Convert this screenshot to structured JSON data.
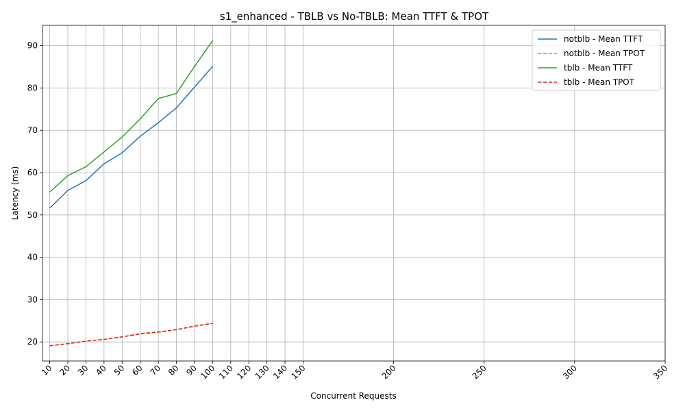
{
  "chart_data": {
    "type": "line",
    "title": "s1_enhanced - TBLB vs No-TBLB: Mean TTFT & TPOT",
    "xlabel": "Concurrent Requests",
    "ylabel": "Latency (ms)",
    "xlim": [
      6,
      350
    ],
    "ylim": [
      15.5,
      94.8
    ],
    "xticks": [
      10,
      20,
      30,
      40,
      50,
      60,
      70,
      80,
      90,
      100,
      110,
      120,
      130,
      140,
      150,
      200,
      250,
      300,
      350
    ],
    "yticks": [
      20,
      30,
      40,
      50,
      60,
      70,
      80,
      90
    ],
    "grid": true,
    "legend_position": "top-right",
    "x": [
      10,
      20,
      30,
      40,
      50,
      60,
      70,
      80,
      90,
      100
    ],
    "series": [
      {
        "name": "notblb - Mean TTFT",
        "color": "#1f77b4",
        "dash": "solid",
        "values": [
          51.6,
          55.8,
          58.1,
          62.1,
          64.7,
          68.6,
          71.8,
          75.3,
          80.2,
          85.1
        ]
      },
      {
        "name": "notblb - Mean TPOT",
        "color": "#ff7f0e",
        "dash": "dashed",
        "values": [
          19.1,
          19.6,
          20.2,
          20.6,
          21.2,
          22.0,
          22.4,
          22.9,
          23.8,
          24.4
        ]
      },
      {
        "name": "tblb - Mean TTFT",
        "color": "#2ca02c",
        "dash": "solid",
        "values": [
          55.4,
          59.3,
          61.4,
          64.9,
          68.4,
          72.7,
          77.5,
          78.7,
          85.1,
          91.2
        ]
      },
      {
        "name": "tblb - Mean TPOT",
        "color": "#d62728",
        "dash": "dashed",
        "values": [
          19.1,
          19.6,
          20.2,
          20.6,
          21.2,
          21.9,
          22.3,
          22.9,
          23.7,
          24.4
        ]
      }
    ]
  }
}
